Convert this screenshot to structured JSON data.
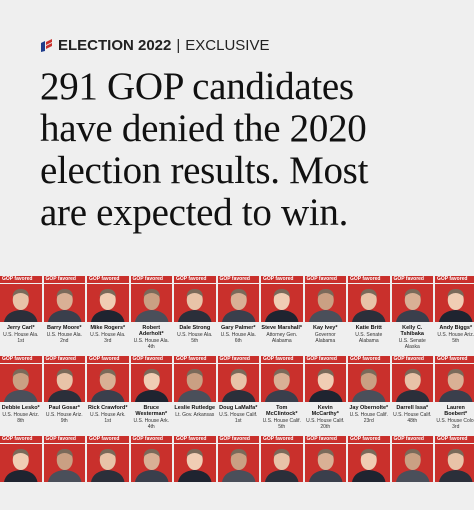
{
  "header": {
    "section": "ELECTION 2022",
    "divider": "|",
    "tag": "EXCLUSIVE"
  },
  "headline": [
    "291 GOP candidates",
    "have denied the 2020",
    "election results. Most",
    "are expected to win."
  ],
  "cards": [
    {
      "label": "GOP favored",
      "name": "Jerry Carl*",
      "office": "U.S. House Ala. 1st"
    },
    {
      "label": "GOP favored",
      "name": "Barry Moore*",
      "office": "U.S. House Ala. 2nd"
    },
    {
      "label": "GOP favored",
      "name": "Mike Rogers*",
      "office": "U.S. House Ala. 3rd"
    },
    {
      "label": "GOP favored",
      "name": "Robert Aderholt*",
      "office": "U.S. House Ala. 4th"
    },
    {
      "label": "GOP favored",
      "name": "Dale Strong",
      "office": "U.S. House Ala. 5th"
    },
    {
      "label": "GOP favored",
      "name": "Gary Palmer*",
      "office": "U.S. House Ala. 6th"
    },
    {
      "label": "GOP favored",
      "name": "Steve Marshall*",
      "office": "Attorney Gen. Alabama"
    },
    {
      "label": "GOP favored",
      "name": "Kay Ivey*",
      "office": "Governor Alabama"
    },
    {
      "label": "GOP favored",
      "name": "Katie Britt",
      "office": "U.S. Senate Alabama"
    },
    {
      "label": "GOP favored",
      "name": "Kelly C. Tshibaka",
      "office": "U.S. Senate Alaska"
    },
    {
      "label": "GOP favored",
      "name": "Andy Biggs*",
      "office": "U.S. House Ariz. 5th"
    },
    {
      "label": "GOP favored",
      "name": "Debbie Lesko*",
      "office": "U.S. House Ariz. 8th"
    },
    {
      "label": "GOP favored",
      "name": "Paul Gosar*",
      "office": "U.S. House Ariz. 9th"
    },
    {
      "label": "GOP favored",
      "name": "Rick Crawford*",
      "office": "U.S. House Ark. 1st"
    },
    {
      "label": "GOP favored",
      "name": "Bruce Westerman*",
      "office": "U.S. House Ark. 4th"
    },
    {
      "label": "GOP favored",
      "name": "Leslie Rutledge",
      "office": "Lt. Gov. Arkansas"
    },
    {
      "label": "GOP favored",
      "name": "Doug LaMalfa*",
      "office": "U.S. House Calif. 1st"
    },
    {
      "label": "GOP favored",
      "name": "Tom McClintock*",
      "office": "U.S. House Calif. 5th"
    },
    {
      "label": "GOP favored",
      "name": "Kevin McCarthy*",
      "office": "U.S. House Calif. 20th"
    },
    {
      "label": "GOP favored",
      "name": "Jay Obernolte*",
      "office": "U.S. House Calif. 23rd"
    },
    {
      "label": "GOP favored",
      "name": "Darrell Issa*",
      "office": "U.S. House Calif. 48th"
    },
    {
      "label": "GOP favored",
      "name": "Lauren Boebert*",
      "office": "U.S. House Colo. 3rd"
    },
    {
      "label": "GOP favored"
    },
    {
      "label": "GOP favored"
    },
    {
      "label": "GOP favored"
    },
    {
      "label": "GOP favored"
    },
    {
      "label": "GOP favored"
    },
    {
      "label": "GOP favored"
    },
    {
      "label": "GOP favored"
    },
    {
      "label": "GOP favored"
    },
    {
      "label": "GOP favored"
    },
    {
      "label": "GOP favored"
    },
    {
      "label": "GOP favored"
    }
  ]
}
